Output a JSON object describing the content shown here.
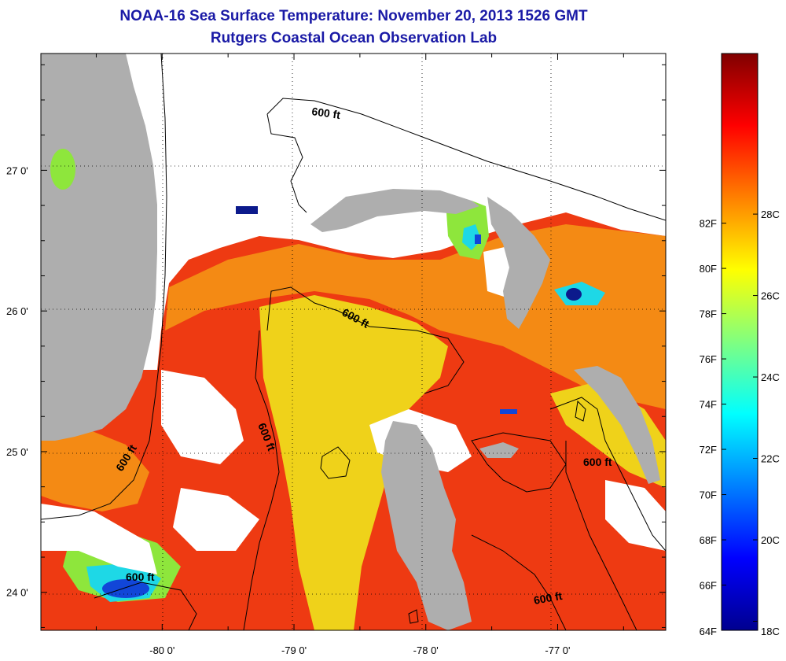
{
  "title_line1": "NOAA-16 Sea Surface Temperature:  November 20, 2013 1526 GMT",
  "title_line2": "Rutgers Coastal Ocean Observation Lab",
  "map": {
    "lon_range": [
      -80.92,
      -76.18
    ],
    "lat_range": [
      23.73,
      27.83
    ],
    "lon_ticks": [
      {
        "value": -80,
        "label": "-80 0'"
      },
      {
        "value": -79,
        "label": "-79 0'"
      },
      {
        "value": -78,
        "label": "-78 0'"
      },
      {
        "value": -77,
        "label": "-77 0'"
      }
    ],
    "lat_ticks": [
      {
        "value": 24,
        "label": "24 0'"
      },
      {
        "value": 25,
        "label": "25 0'"
      },
      {
        "value": 26,
        "label": "26 0'"
      },
      {
        "value": 27,
        "label": "27 0'"
      }
    ],
    "grid": "dotted",
    "contour_label": "600 ft",
    "colors": {
      "land": "#aeaeae",
      "cloud": "#ffffff",
      "warm": "#ee3a12",
      "orange": "#f48a14",
      "yellow": "#efd21a",
      "green": "#8ee63c",
      "cyan": "#1ed8e6",
      "blue": "#1146d8",
      "navy": "#0c1a8c"
    }
  },
  "colorbar": {
    "stops": [
      "#00008f",
      "#0000ff",
      "#0080ff",
      "#00ffff",
      "#80ff80",
      "#ffff00",
      "#ff8000",
      "#ff0000",
      "#800000"
    ],
    "fahrenheit_labels": [
      "64F",
      "66F",
      "68F",
      "70F",
      "72F",
      "74F",
      "76F",
      "78F",
      "80F",
      "82F"
    ],
    "celsius_labels": [
      "18C",
      "20C",
      "22C",
      "24C",
      "26C",
      "28C"
    ]
  }
}
